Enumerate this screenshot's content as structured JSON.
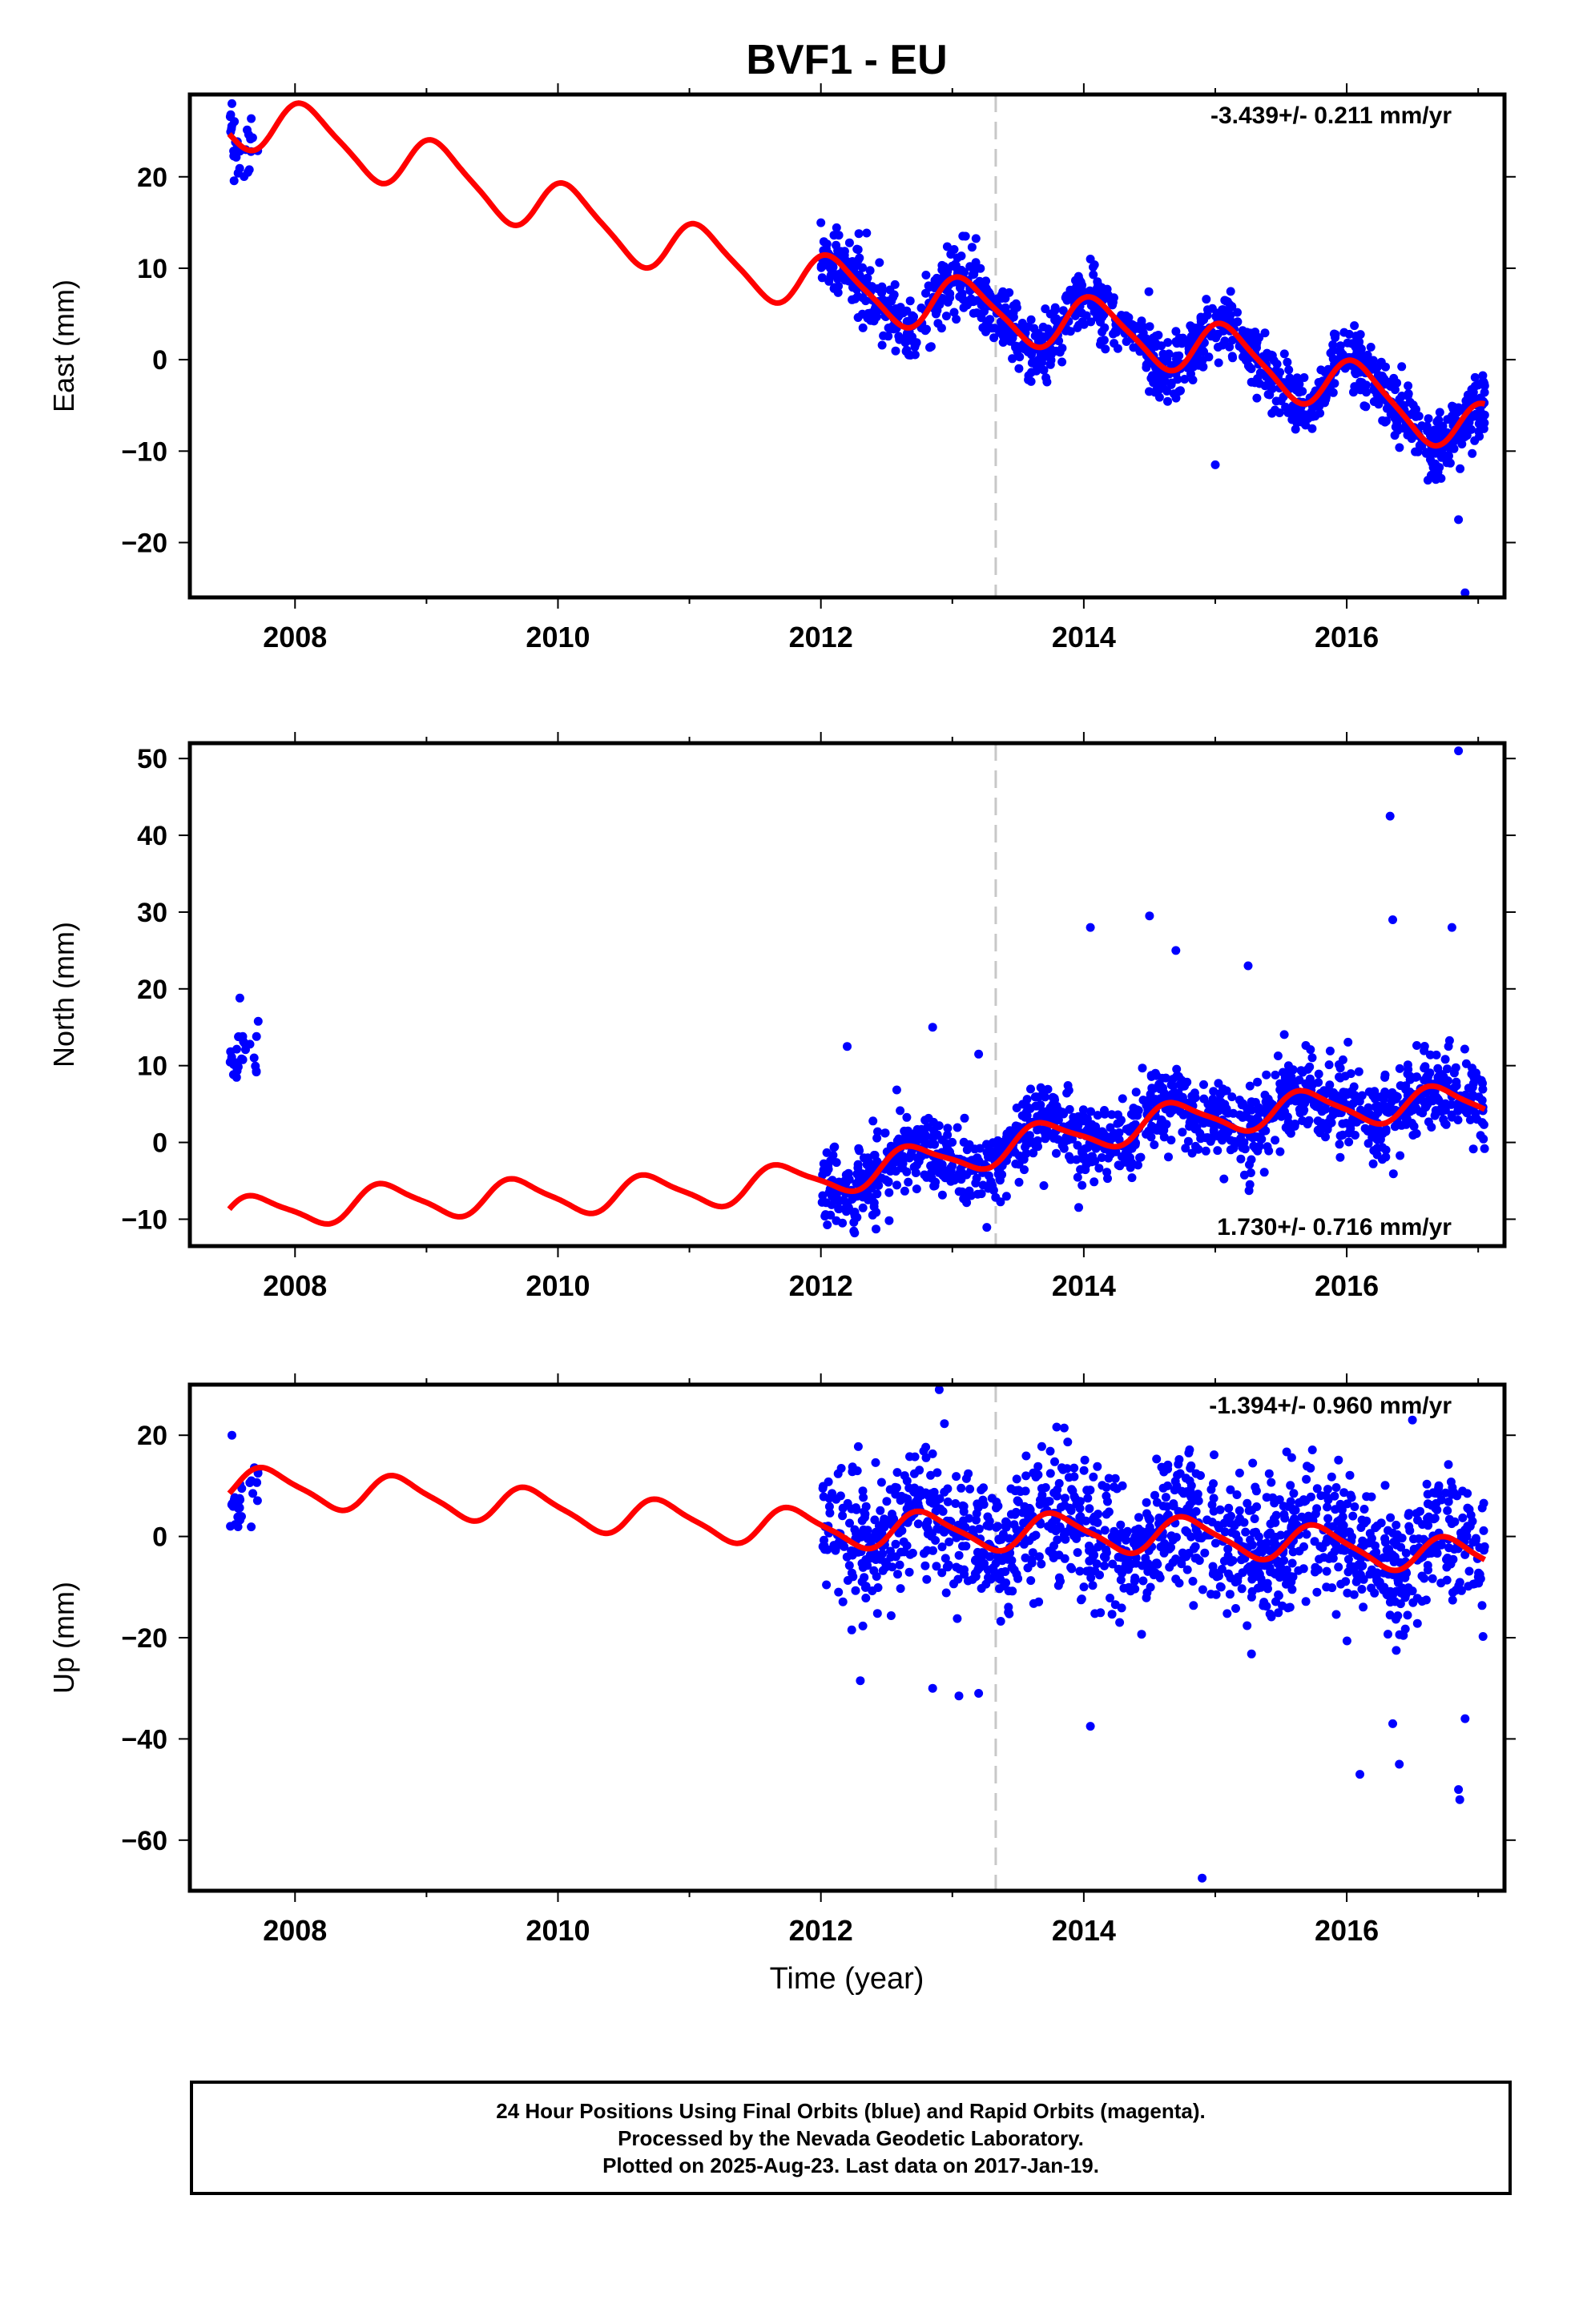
{
  "title": "BVF1 - EU",
  "xlabel": "Time (year)",
  "footer": {
    "line1": "24 Hour Positions Using Final Orbits (blue) and Rapid Orbits (magenta).",
    "line2": "Processed by the Nevada Geodetic Laboratory.",
    "line3": "Plotted on 2025-Aug-23. Last data on 2017-Jan-19."
  },
  "colors": {
    "data_points": "#0000ff",
    "model_fit": "#ff0000",
    "equipment_change": "#c8c8c8",
    "axes": "#000000"
  },
  "chart_data": [
    {
      "type": "scatter",
      "ylabel": "East (mm)",
      "rate_label": "-3.439+/- 0.211 mm/yr",
      "rate_position": "top-right",
      "xlim": [
        2007.2,
        2017.2
      ],
      "ylim": [
        -26,
        29
      ],
      "xticks": [
        2008,
        2010,
        2012,
        2014,
        2016
      ],
      "xtick_labels": [
        "2008",
        "2010",
        "2012",
        "2014",
        "2016"
      ],
      "yticks": [
        -20,
        -10,
        0,
        10,
        20
      ],
      "ytick_labels": [
        "−20",
        "−10",
        "0",
        "10",
        "20"
      ],
      "vline_x": 2013.33,
      "model": {
        "x0": 2007.5,
        "intercept": 25.2,
        "slope": -3.44,
        "amp": 3.0,
        "phase": 0.15,
        "amp2": 0.6,
        "wander": 1.5
      },
      "points": {
        "seed": 11,
        "segments": [
          {
            "x0": 2007.5,
            "x1": 2007.72,
            "n": 28,
            "sigma": 1.8,
            "offset": 0
          },
          {
            "x0": 2012.0,
            "x1": 2017.05,
            "n": 1300,
            "sigma": 1.8,
            "offset": 0
          }
        ]
      },
      "outliers": [
        [
          2007.52,
          28.0
        ],
        [
          2013.1,
          13.5
        ],
        [
          2013.15,
          12.3
        ],
        [
          2014.05,
          11.0
        ],
        [
          2016.85,
          -17.5
        ],
        [
          2016.9,
          -25.5
        ],
        [
          2015.0,
          -11.5
        ]
      ]
    },
    {
      "type": "scatter",
      "ylabel": "North (mm)",
      "rate_label": "1.730+/- 0.716 mm/yr",
      "rate_position": "bottom-right",
      "xlim": [
        2007.2,
        2017.2
      ],
      "ylim": [
        -13.5,
        52
      ],
      "xticks": [
        2008,
        2010,
        2012,
        2014,
        2016
      ],
      "xtick_labels": [
        "2008",
        "2010",
        "2012",
        "2014",
        "2016"
      ],
      "yticks": [
        -10,
        0,
        10,
        20,
        30,
        40,
        50
      ],
      "ytick_labels": [
        "−10",
        "0",
        "10",
        "20",
        "30",
        "40",
        "50"
      ],
      "vline_x": 2013.33,
      "model": {
        "x0": 2007.5,
        "intercept": -11.0,
        "slope": 1.73,
        "amp": 2.2,
        "phase": 0.55,
        "amp2": 0.5,
        "wander": 1.5
      },
      "points": {
        "seed": 23,
        "segments": [
          {
            "x0": 2007.5,
            "x1": 2007.72,
            "n": 28,
            "sigma": 1.5,
            "offset": 19.5
          },
          {
            "x0": 2012.0,
            "x1": 2017.05,
            "n": 1300,
            "sigma": 2.6,
            "offset": 0
          }
        ]
      },
      "outliers": [
        [
          2007.58,
          18.8
        ],
        [
          2014.05,
          28.0
        ],
        [
          2014.5,
          29.5
        ],
        [
          2015.25,
          23.0
        ],
        [
          2016.33,
          42.5
        ],
        [
          2016.35,
          29.0
        ],
        [
          2016.85,
          51.0
        ],
        [
          2016.8,
          28.0
        ],
        [
          2012.2,
          12.5
        ],
        [
          2012.85,
          15.0
        ],
        [
          2013.2,
          11.5
        ],
        [
          2014.7,
          25.0
        ]
      ]
    },
    {
      "type": "scatter",
      "ylabel": "Up (mm)",
      "rate_label": "-1.394+/- 0.960 mm/yr",
      "rate_position": "top-right",
      "xlim": [
        2007.2,
        2017.2
      ],
      "ylim": [
        -70,
        30
      ],
      "xticks": [
        2008,
        2010,
        2012,
        2014,
        2016
      ],
      "xtick_labels": [
        "2008",
        "2010",
        "2012",
        "2014",
        "2016"
      ],
      "yticks": [
        -60,
        -40,
        -20,
        0,
        20
      ],
      "ytick_labels": [
        "−60",
        "−40",
        "−20",
        "0",
        "20"
      ],
      "vline_x": 2013.33,
      "model": {
        "x0": 2007.5,
        "intercept": 9.0,
        "slope": -1.39,
        "amp": 3.5,
        "phase": 0.45,
        "amp2": 0.8,
        "wander": 1.2
      },
      "points": {
        "seed": 37,
        "segments": [
          {
            "x0": 2007.5,
            "x1": 2007.72,
            "n": 28,
            "sigma": 3.0,
            "offset": -5
          },
          {
            "x0": 2012.0,
            "x1": 2017.05,
            "n": 1300,
            "sigma": 6.5,
            "offset": 0
          }
        ]
      },
      "outliers": [
        [
          2007.52,
          20.0
        ],
        [
          2012.9,
          29.0
        ],
        [
          2013.05,
          -31.5
        ],
        [
          2013.2,
          -31.0
        ],
        [
          2014.05,
          -37.5
        ],
        [
          2014.9,
          -67.5
        ],
        [
          2016.1,
          -47.0
        ],
        [
          2016.35,
          -37.0
        ],
        [
          2016.4,
          -45.0
        ],
        [
          2016.85,
          -50.0
        ],
        [
          2016.86,
          -52.0
        ],
        [
          2016.9,
          -36.0
        ],
        [
          2012.3,
          -28.5
        ],
        [
          2012.85,
          -30.0
        ],
        [
          2016.5,
          23.0
        ]
      ]
    }
  ]
}
